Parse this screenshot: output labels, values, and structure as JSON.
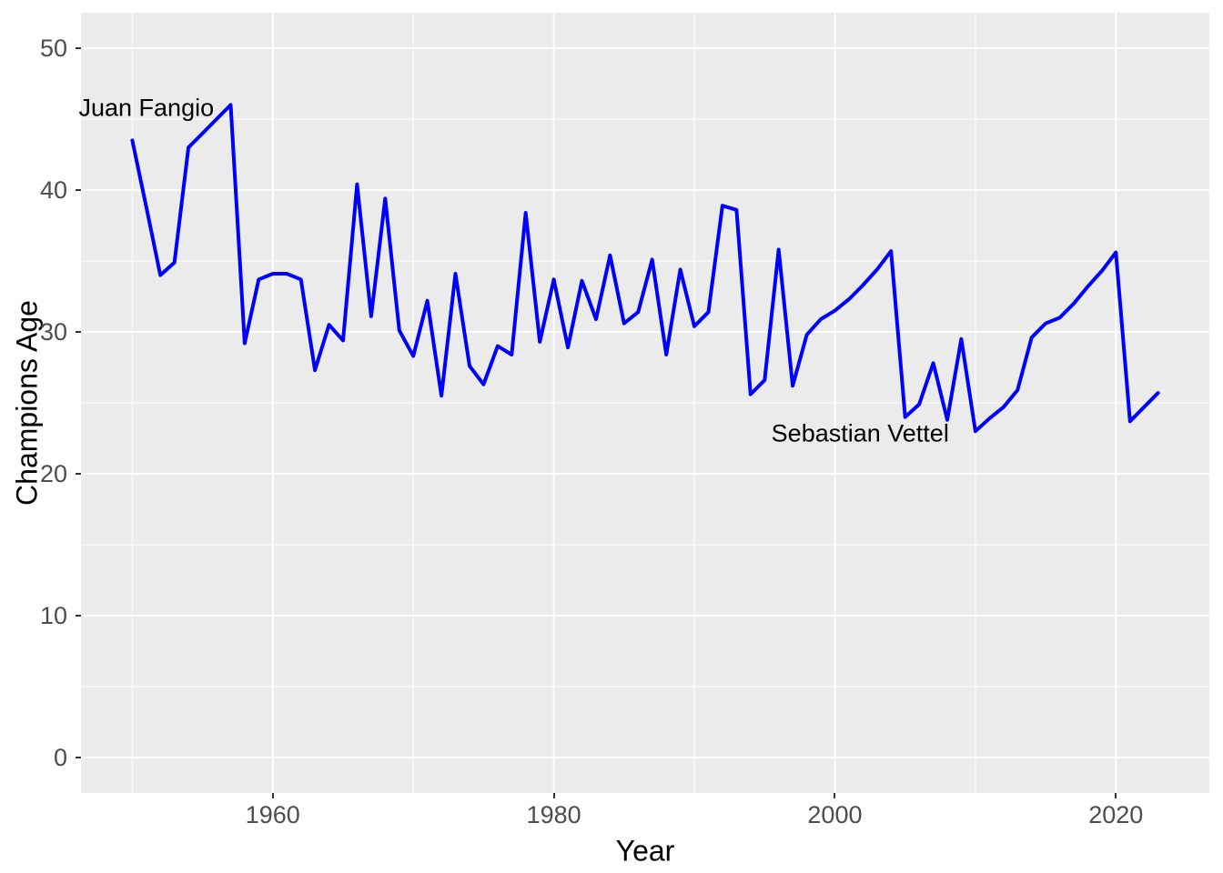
{
  "colors": {
    "line": "#0000ff",
    "panel_background": "#ebebeb",
    "grid": "#ffffff",
    "tick_label": "#4d4d4d",
    "tick_mark": "#333333",
    "axis_title": "#000000",
    "annotation_text": "#000000",
    "figure_background": "#ffffff"
  },
  "chart_data": {
    "type": "line",
    "title": "",
    "xlabel": "Year",
    "ylabel": "Champions Age",
    "legend": "none",
    "grid": "white major and minor gridlines on grey panel",
    "xlim": [
      1946.35,
      2026.65
    ],
    "ylim": [
      -2.5,
      52.5
    ],
    "x_ticks": [
      1960,
      1980,
      2000,
      2020
    ],
    "y_ticks": [
      0,
      10,
      20,
      30,
      40,
      50
    ],
    "x_minor_ticks": [
      1950,
      1970,
      1990,
      2010
    ],
    "y_minor_ticks": [
      5,
      15,
      25,
      35,
      45
    ],
    "x": [
      1950,
      1951,
      1952,
      1953,
      1954,
      1955,
      1956,
      1957,
      1958,
      1959,
      1960,
      1961,
      1962,
      1963,
      1964,
      1965,
      1966,
      1967,
      1968,
      1969,
      1970,
      1971,
      1972,
      1973,
      1974,
      1975,
      1976,
      1977,
      1978,
      1979,
      1980,
      1981,
      1982,
      1983,
      1984,
      1985,
      1986,
      1987,
      1988,
      1989,
      1990,
      1991,
      1992,
      1993,
      1994,
      1995,
      1996,
      1997,
      1998,
      1999,
      2000,
      2001,
      2002,
      2003,
      2004,
      2005,
      2006,
      2007,
      2008,
      2009,
      2010,
      2011,
      2012,
      2013,
      2014,
      2015,
      2016,
      2017,
      2018,
      2019,
      2020,
      2021,
      2022,
      2023
    ],
    "series": [
      {
        "name": "Champions Age",
        "color": "#0000ff",
        "values": [
          43.5,
          38.8,
          34.0,
          34.9,
          43.0,
          44.0,
          45.0,
          46.0,
          29.2,
          33.7,
          34.1,
          34.1,
          33.7,
          27.3,
          30.5,
          29.4,
          40.4,
          31.1,
          39.4,
          30.1,
          28.3,
          32.2,
          25.5,
          34.1,
          27.6,
          26.3,
          29.0,
          28.4,
          38.4,
          29.3,
          33.7,
          28.9,
          33.6,
          30.9,
          35.4,
          30.6,
          31.4,
          35.1,
          28.4,
          34.4,
          30.4,
          31.4,
          38.9,
          38.6,
          25.6,
          26.6,
          35.8,
          26.2,
          29.8,
          30.9,
          31.5,
          32.3,
          33.3,
          34.4,
          35.7,
          24.0,
          24.9,
          27.8,
          23.8,
          29.5,
          23.0,
          23.9,
          24.7,
          25.9,
          29.6,
          30.6,
          31.0,
          32.0,
          33.2,
          34.3,
          35.6,
          23.7,
          24.7,
          25.7
        ]
      }
    ],
    "annotations": [
      {
        "text": "Juan Fangio",
        "x": 1951.0,
        "y": 45.8
      },
      {
        "text": "Sebastian Vettel",
        "x": 2001.8,
        "y": 22.8
      }
    ]
  }
}
